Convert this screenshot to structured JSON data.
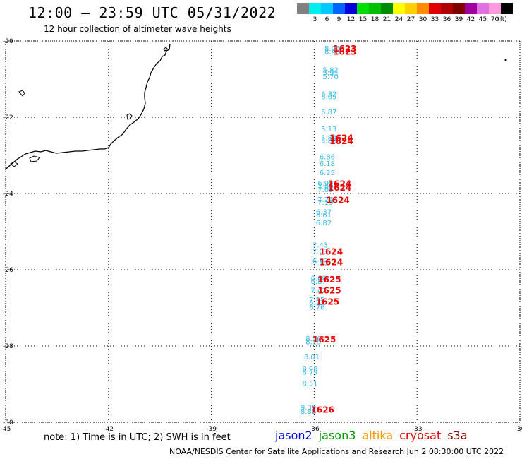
{
  "header": {
    "title": "12:00 – 23:59 UTC 05/31/2022",
    "subtitle": "12 hour collection of altimeter wave heights"
  },
  "scale": {
    "unit": "(ft)",
    "swatches": [
      {
        "color": "#808080",
        "label": ""
      },
      {
        "color": "#00eeee",
        "label": "3"
      },
      {
        "color": "#00c8ff",
        "label": "6"
      },
      {
        "color": "#0064ff",
        "label": "9"
      },
      {
        "color": "#0000dc",
        "label": "12"
      },
      {
        "color": "#00e000",
        "label": "15"
      },
      {
        "color": "#00c000",
        "label": "18"
      },
      {
        "color": "#008c00",
        "label": "21"
      },
      {
        "color": "#ffff00",
        "label": "24"
      },
      {
        "color": "#ffd000",
        "label": "27"
      },
      {
        "color": "#ff8c00",
        "label": "30"
      },
      {
        "color": "#e00000",
        "label": "33"
      },
      {
        "color": "#b00000",
        "label": "36"
      },
      {
        "color": "#800000",
        "label": "39"
      },
      {
        "color": "#a000a0",
        "label": "42"
      },
      {
        "color": "#e070e0",
        "label": "45"
      },
      {
        "color": "#ff99dd",
        "label": "70"
      },
      {
        "color": "#000000",
        "label": ""
      }
    ]
  },
  "map": {
    "lon_range": [
      -45,
      -30
    ],
    "lat_range": [
      -30,
      -20
    ],
    "x_ticks": [
      {
        "value": -45,
        "label": "-45"
      },
      {
        "value": -42,
        "label": "-42"
      },
      {
        "value": -39,
        "label": "-39"
      },
      {
        "value": -36,
        "label": "-36"
      },
      {
        "value": -33,
        "label": "-33"
      },
      {
        "value": -30,
        "label": "-30"
      }
    ],
    "y_ticks": [
      {
        "value": -20,
        "label": "-20"
      },
      {
        "value": -22,
        "label": "-22"
      },
      {
        "value": -24,
        "label": "-24"
      },
      {
        "value": -26,
        "label": "-26"
      },
      {
        "value": -28,
        "label": "-28"
      },
      {
        "value": -30,
        "label": "-30"
      }
    ],
    "wave_color": "#33bbe8",
    "time_color": "#ee0000",
    "land_color": "#000000",
    "grid_style": "dotted",
    "wave_labels": [
      {
        "lon": -35.7,
        "lat": -20.26,
        "text": "8.06"
      },
      {
        "lon": -35.7,
        "lat": -20.34,
        "text": "8.45"
      },
      {
        "lon": -35.75,
        "lat": -20.82,
        "text": "5.82"
      },
      {
        "lon": -35.75,
        "lat": -20.9,
        "text": "5.91"
      },
      {
        "lon": -35.75,
        "lat": -21.0,
        "text": "5.70"
      },
      {
        "lon": -35.8,
        "lat": -21.45,
        "text": "6.32"
      },
      {
        "lon": -35.8,
        "lat": -21.53,
        "text": "6.09"
      },
      {
        "lon": -35.8,
        "lat": -21.93,
        "text": "6.87"
      },
      {
        "lon": -35.8,
        "lat": -22.37,
        "text": "5.13"
      },
      {
        "lon": -35.8,
        "lat": -22.6,
        "text": "5.84"
      },
      {
        "lon": -35.8,
        "lat": -22.68,
        "text": "5.86"
      },
      {
        "lon": -35.85,
        "lat": -23.1,
        "text": "6.86"
      },
      {
        "lon": -35.85,
        "lat": -23.28,
        "text": "6.18"
      },
      {
        "lon": -35.85,
        "lat": -23.52,
        "text": "6.25"
      },
      {
        "lon": -35.9,
        "lat": -23.8,
        "text": "6.99"
      },
      {
        "lon": -35.9,
        "lat": -23.88,
        "text": "7.00"
      },
      {
        "lon": -35.9,
        "lat": -23.96,
        "text": "7.05"
      },
      {
        "lon": -35.9,
        "lat": -24.22,
        "text": "7.26"
      },
      {
        "lon": -35.9,
        "lat": -24.3,
        "text": "7.19"
      },
      {
        "lon": -35.95,
        "lat": -24.55,
        "text": "6.37"
      },
      {
        "lon": -35.95,
        "lat": -24.63,
        "text": "6.61"
      },
      {
        "lon": -35.95,
        "lat": -24.83,
        "text": "6.82"
      },
      {
        "lon": -36.05,
        "lat": -25.42,
        "text": "7.43"
      },
      {
        "lon": -36.05,
        "lat": -25.58,
        "text": "7.03"
      },
      {
        "lon": -36.05,
        "lat": -25.83,
        "text": "6.83"
      },
      {
        "lon": -36.05,
        "lat": -25.91,
        "text": "7.17"
      },
      {
        "lon": -36.1,
        "lat": -26.29,
        "text": "6.69"
      },
      {
        "lon": -36.1,
        "lat": -26.37,
        "text": "6.87"
      },
      {
        "lon": -36.1,
        "lat": -26.6,
        "text": "7.42"
      },
      {
        "lon": -36.15,
        "lat": -26.85,
        "text": "7.55"
      },
      {
        "lon": -36.15,
        "lat": -26.93,
        "text": "6.72"
      },
      {
        "lon": -36.15,
        "lat": -27.05,
        "text": "6.76"
      },
      {
        "lon": -36.25,
        "lat": -27.87,
        "text": "8.56"
      },
      {
        "lon": -36.25,
        "lat": -27.95,
        "text": "8.19"
      },
      {
        "lon": -36.3,
        "lat": -28.35,
        "text": "8.01"
      },
      {
        "lon": -36.35,
        "lat": -28.67,
        "text": "8.98"
      },
      {
        "lon": -36.35,
        "lat": -28.75,
        "text": "8.79"
      },
      {
        "lon": -36.35,
        "lat": -29.05,
        "text": "8.51"
      },
      {
        "lon": -36.4,
        "lat": -29.68,
        "text": "9.39"
      },
      {
        "lon": -36.4,
        "lat": -29.78,
        "text": "8.85"
      }
    ],
    "time_labels": [
      {
        "lon": -35.45,
        "lat": -20.28,
        "text": "1623"
      },
      {
        "lon": -35.45,
        "lat": -20.36,
        "text": "1623"
      },
      {
        "lon": -35.55,
        "lat": -22.62,
        "text": "1624"
      },
      {
        "lon": -35.55,
        "lat": -22.7,
        "text": "1624"
      },
      {
        "lon": -35.6,
        "lat": -23.82,
        "text": "1624"
      },
      {
        "lon": -35.6,
        "lat": -23.93,
        "text": "1624"
      },
      {
        "lon": -35.65,
        "lat": -24.25,
        "text": "1624"
      },
      {
        "lon": -35.85,
        "lat": -25.6,
        "text": "1624"
      },
      {
        "lon": -35.85,
        "lat": -25.88,
        "text": "1624"
      },
      {
        "lon": -35.9,
        "lat": -26.33,
        "text": "1625"
      },
      {
        "lon": -35.9,
        "lat": -26.62,
        "text": "1625"
      },
      {
        "lon": -35.95,
        "lat": -26.92,
        "text": "1625"
      },
      {
        "lon": -36.05,
        "lat": -27.91,
        "text": "1625"
      },
      {
        "lon": -36.1,
        "lat": -29.75,
        "text": "1626"
      }
    ]
  },
  "footer": {
    "note": "note: 1) Time is in UTC; 2) SWH is in feet",
    "satellites": [
      {
        "name": "jason2",
        "color": "#0000ee"
      },
      {
        "name": "jason3",
        "color": "#009900"
      },
      {
        "name": "altika",
        "color": "#ff9900"
      },
      {
        "name": "cryosat",
        "color": "#dd0000"
      },
      {
        "name": "s3a",
        "color": "#880000"
      }
    ],
    "credit": "NOAA/NESDIS Center for Satellite Applications and Research    Jun  2 08:30:00 UTC 2022"
  }
}
